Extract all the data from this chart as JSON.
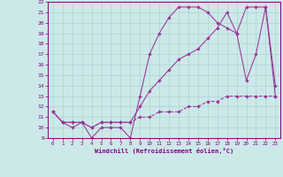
{
  "xlabel": "Windchill (Refroidissement éolien,°C)",
  "xlim": [
    -0.5,
    23.5
  ],
  "ylim": [
    9,
    22
  ],
  "xticks": [
    0,
    1,
    2,
    3,
    4,
    5,
    6,
    7,
    8,
    9,
    10,
    11,
    12,
    13,
    14,
    15,
    16,
    17,
    18,
    19,
    20,
    21,
    22,
    23
  ],
  "yticks": [
    9,
    10,
    11,
    12,
    13,
    14,
    15,
    16,
    17,
    18,
    19,
    20,
    21,
    22
  ],
  "bg_color": "#cce8e8",
  "line_color": "#993399",
  "grid_color": "#aad4d4",
  "lines": [
    {
      "x": [
        0,
        1,
        2,
        3,
        4,
        5,
        6,
        7,
        8,
        9,
        10,
        11,
        12,
        13,
        14,
        15,
        16,
        17,
        18,
        19,
        20,
        21,
        22,
        23
      ],
      "y": [
        11.5,
        10.5,
        10.0,
        10.5,
        9.0,
        10.0,
        10.0,
        10.0,
        9.0,
        13.0,
        17.0,
        19.0,
        20.5,
        21.5,
        21.5,
        21.5,
        21.0,
        20.0,
        19.5,
        19.0,
        14.5,
        17.0,
        21.5,
        14.0
      ],
      "dashed": false
    },
    {
      "x": [
        0,
        1,
        2,
        3,
        4,
        5,
        6,
        7,
        8,
        9,
        10,
        11,
        12,
        13,
        14,
        15,
        16,
        17,
        18,
        19,
        20,
        21,
        22,
        23
      ],
      "y": [
        11.5,
        10.5,
        10.5,
        10.5,
        10.0,
        10.5,
        10.5,
        10.5,
        10.5,
        12.0,
        13.5,
        14.5,
        15.5,
        16.5,
        17.0,
        17.5,
        18.5,
        19.5,
        21.0,
        19.0,
        21.5,
        21.5,
        21.5,
        13.0
      ],
      "dashed": false
    },
    {
      "x": [
        0,
        1,
        2,
        3,
        4,
        5,
        6,
        7,
        8,
        9,
        10,
        11,
        12,
        13,
        14,
        15,
        16,
        17,
        18,
        19,
        20,
        21,
        22,
        23
      ],
      "y": [
        11.5,
        10.5,
        10.5,
        10.5,
        10.0,
        10.5,
        10.5,
        10.5,
        10.5,
        11.0,
        11.0,
        11.5,
        11.5,
        11.5,
        12.0,
        12.0,
        12.5,
        12.5,
        13.0,
        13.0,
        13.0,
        13.0,
        13.0,
        13.0
      ],
      "dashed": true
    }
  ]
}
